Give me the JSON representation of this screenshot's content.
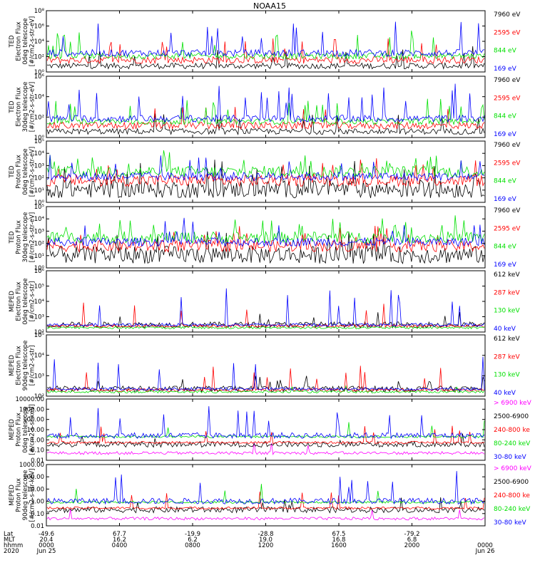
{
  "title": "NOAA15",
  "colors": {
    "black": "#000000",
    "red": "#ff0000",
    "green": "#00e000",
    "blue": "#0000ff",
    "magenta": "#ff00ff"
  },
  "chart_data": [
    {
      "type": "line",
      "panel": 1,
      "ylabel": [
        "TED",
        "Electron Flux",
        "0deg telescope",
        "[#/cm2-s-str-eV]"
      ],
      "yscale": "log",
      "ylim": [
        1,
        100000000
      ],
      "yticks": [
        "10⁰",
        "10²",
        "10⁴",
        "10⁶",
        "10⁸"
      ],
      "legend": [
        {
          "label": "7960 eV",
          "color": "black"
        },
        {
          "label": "2595 eV",
          "color": "red"
        },
        {
          "label": "844 eV",
          "color": "green"
        },
        {
          "label": "169 eV",
          "color": "blue"
        }
      ]
    },
    {
      "type": "line",
      "panel": 2,
      "ylabel": [
        "TED",
        "Electron Flux",
        "30deg telescope",
        "[#/cm2-s-str-eV]"
      ],
      "yscale": "log",
      "ylim": [
        1,
        1000000
      ],
      "yticks": [
        "10⁰",
        "10²",
        "10⁴",
        "10⁶"
      ],
      "legend": [
        {
          "label": "7960 eV",
          "color": "black"
        },
        {
          "label": "2595 eV",
          "color": "red"
        },
        {
          "label": "844 eV",
          "color": "green"
        },
        {
          "label": "169 eV",
          "color": "blue"
        }
      ]
    },
    {
      "type": "line",
      "panel": 3,
      "ylabel": [
        "TED",
        "Proton Flux",
        "0deg telescope",
        "[#/cm2-s-str-eV]"
      ],
      "yscale": "log",
      "ylim": [
        1,
        100000
      ],
      "yticks": [
        "10⁰",
        "10¹",
        "10²",
        "10³",
        "10⁴",
        "10⁵"
      ],
      "legend": [
        {
          "label": "7960 eV",
          "color": "black"
        },
        {
          "label": "2595 eV",
          "color": "red"
        },
        {
          "label": "844 eV",
          "color": "green"
        },
        {
          "label": "169 eV",
          "color": "blue"
        }
      ]
    },
    {
      "type": "line",
      "panel": 4,
      "ylabel": [
        "TED",
        "Proton Flux",
        "30deg telescope",
        "[#/cm2-s-str-eV]"
      ],
      "yscale": "log",
      "ylim": [
        1,
        100000
      ],
      "yticks": [
        "10⁰",
        "10¹",
        "10²",
        "10³",
        "10⁴",
        "10⁵"
      ],
      "legend": [
        {
          "label": "7960 eV",
          "color": "black"
        },
        {
          "label": "2595 eV",
          "color": "red"
        },
        {
          "label": "844 eV",
          "color": "green"
        },
        {
          "label": "169 eV",
          "color": "blue"
        }
      ]
    },
    {
      "type": "line",
      "panel": 5,
      "ylabel": [
        "MEPED",
        "Electron Flux",
        "0deg telescope",
        "[#/cm2-s-str]"
      ],
      "yscale": "log",
      "ylim": [
        100,
        1000000
      ],
      "yticks": [
        "10²",
        "10³",
        "10⁴",
        "10⁵",
        "10⁶"
      ],
      "legend": [
        {
          "label": "612 keV",
          "color": "black"
        },
        {
          "label": "287 keV",
          "color": "red"
        },
        {
          "label": "130 keV",
          "color": "green"
        },
        {
          "label": "40 keV",
          "color": "blue"
        }
      ]
    },
    {
      "type": "line",
      "panel": 6,
      "ylabel": [
        "MEPED",
        "Electron Flux",
        "90deg telescope",
        "[#/cm2-s-str]"
      ],
      "yscale": "log",
      "ylim": [
        100,
        100000
      ],
      "yticks": [
        "10²",
        "10³",
        "10⁴",
        "10⁵"
      ],
      "legend": [
        {
          "label": "612 keV",
          "color": "black"
        },
        {
          "label": "287 keV",
          "color": "red"
        },
        {
          "label": "130 keV",
          "color": "green"
        },
        {
          "label": "40 keV",
          "color": "blue"
        }
      ]
    },
    {
      "type": "line",
      "panel": 7,
      "ylabel": [
        "MEPED",
        "Proton Flux",
        "0deg telescope",
        "[#/cm2-s-sr-keV]"
      ],
      "yscale": "log",
      "ylim": [
        0.01,
        10000
      ],
      "yticks": [
        "0.01",
        "0.10",
        "1.00",
        "10.00",
        "100.00",
        "1000.00",
        "10000.00"
      ],
      "legend": [
        {
          "label": "> 6900 keV",
          "color": "magenta"
        },
        {
          "label": "2500-6900",
          "color": "black"
        },
        {
          "label": "240-800 ke",
          "color": "red"
        },
        {
          "label": "80-240 keV",
          "color": "green"
        },
        {
          "label": "30-80 keV",
          "color": "blue"
        }
      ]
    },
    {
      "type": "line",
      "panel": 8,
      "ylabel": [
        "MEPED",
        "Proton Flux",
        "90deg telescope",
        "[#/cm2-s-str-keV]"
      ],
      "yscale": "log",
      "ylim": [
        0.01,
        1000
      ],
      "yticks": [
        "0.01",
        "0.10",
        "1.00",
        "10.00",
        "100.00",
        "1000.00"
      ],
      "legend": [
        {
          "label": "> 6900 keV",
          "color": "magenta"
        },
        {
          "label": "2500-6900",
          "color": "black"
        },
        {
          "label": "240-800 ke",
          "color": "red"
        },
        {
          "label": "80-240 keV",
          "color": "green"
        },
        {
          "label": "30-80 keV",
          "color": "blue"
        }
      ]
    }
  ],
  "x_axis": {
    "row_labels": [
      "Lat",
      "MLT",
      "hhmm",
      "2020"
    ],
    "ticks": [
      {
        "lat": "-49.6",
        "mlt": "20.4",
        "hhmm": "0000",
        "date": "Jun 25"
      },
      {
        "lat": "67.7",
        "mlt": "16.2",
        "hhmm": "0400",
        "date": ""
      },
      {
        "lat": "-19.9",
        "mlt": "6.2",
        "hhmm": "0800",
        "date": ""
      },
      {
        "lat": "-28.8",
        "mlt": "19.0",
        "hhmm": "1200",
        "date": ""
      },
      {
        "lat": "67.5",
        "mlt": "16.8",
        "hhmm": "1600",
        "date": ""
      },
      {
        "lat": "-79.2",
        "mlt": "6.8",
        "hhmm": "2000",
        "date": ""
      },
      {
        "lat": "",
        "mlt": "",
        "hhmm": "0000",
        "date": "Jun 26"
      }
    ]
  }
}
